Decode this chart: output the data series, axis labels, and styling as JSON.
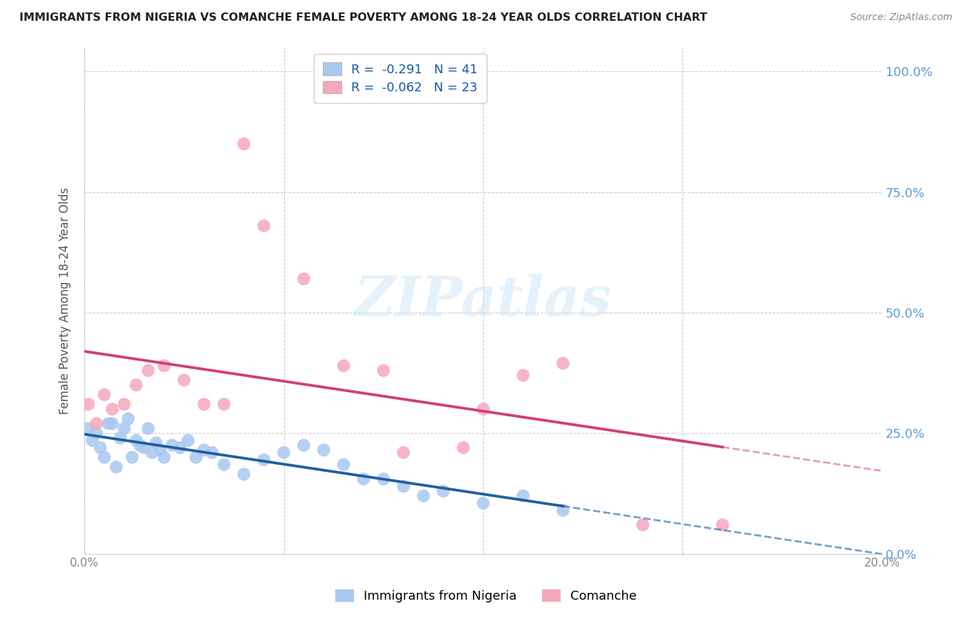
{
  "title": "IMMIGRANTS FROM NIGERIA VS COMANCHE FEMALE POVERTY AMONG 18-24 YEAR OLDS CORRELATION CHART",
  "source": "Source: ZipAtlas.com",
  "ylabel": "Female Poverty Among 18-24 Year Olds",
  "ytick_labels": [
    "0.0%",
    "25.0%",
    "50.0%",
    "75.0%",
    "100.0%"
  ],
  "xtick_labels": [
    "0.0%",
    "",
    "",
    "",
    "20.0%"
  ],
  "legend_label1": "Immigrants from Nigeria",
  "legend_label2": "Comanche",
  "R1": "-0.291",
  "N1": "41",
  "R2": "-0.062",
  "N2": "23",
  "watermark": "ZIPatlas",
  "blue_color": "#a8c8f0",
  "pink_color": "#f5a8bc",
  "blue_line_color": "#2060a0",
  "pink_line_color": "#d04070",
  "nigeria_x": [
    0.1,
    0.2,
    0.3,
    0.4,
    0.5,
    0.6,
    0.7,
    0.8,
    0.9,
    1.0,
    1.1,
    1.2,
    1.3,
    1.4,
    1.5,
    1.6,
    1.7,
    1.8,
    1.9,
    2.0,
    2.2,
    2.4,
    2.6,
    2.8,
    3.0,
    3.2,
    3.5,
    4.0,
    4.5,
    5.0,
    5.5,
    6.0,
    6.5,
    7.0,
    7.5,
    8.0,
    8.5,
    9.0,
    10.0,
    11.0,
    12.0
  ],
  "nigeria_y": [
    0.26,
    0.235,
    0.25,
    0.22,
    0.2,
    0.27,
    0.27,
    0.18,
    0.24,
    0.26,
    0.28,
    0.2,
    0.235,
    0.225,
    0.22,
    0.26,
    0.21,
    0.23,
    0.215,
    0.2,
    0.225,
    0.22,
    0.235,
    0.2,
    0.215,
    0.21,
    0.185,
    0.165,
    0.195,
    0.21,
    0.225,
    0.215,
    0.185,
    0.155,
    0.155,
    0.14,
    0.12,
    0.13,
    0.105,
    0.12,
    0.09
  ],
  "comanche_x": [
    0.1,
    0.3,
    0.5,
    0.7,
    1.0,
    1.3,
    1.6,
    2.0,
    2.5,
    3.0,
    3.5,
    4.0,
    4.5,
    5.5,
    6.5,
    7.5,
    8.0,
    9.5,
    10.0,
    11.0,
    12.0,
    14.0,
    16.0
  ],
  "comanche_y": [
    0.31,
    0.27,
    0.33,
    0.3,
    0.31,
    0.35,
    0.38,
    0.39,
    0.36,
    0.31,
    0.31,
    0.85,
    0.68,
    0.57,
    0.39,
    0.38,
    0.21,
    0.22,
    0.3,
    0.37,
    0.395,
    0.06,
    0.06
  ],
  "xlim": [
    0,
    20
  ],
  "ylim": [
    0,
    1.05
  ],
  "ytick_vals": [
    0,
    0.25,
    0.5,
    0.75,
    1.0
  ],
  "xtick_vals": [
    0,
    5,
    10,
    15,
    20
  ]
}
